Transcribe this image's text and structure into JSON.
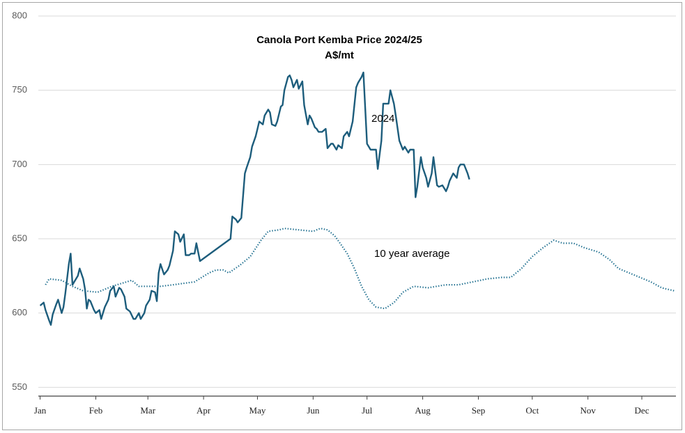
{
  "chart_data": {
    "type": "line",
    "title": "Canola Port Kemba Price 2024/25",
    "subtitle": "A$/mt",
    "annotations": [
      "2024",
      "10 year average"
    ],
    "xlim": [
      -1,
      354
    ],
    "xticks": [
      {
        "value": 0,
        "label": "Jan"
      },
      {
        "value": 31,
        "label": "Feb"
      },
      {
        "value": 60,
        "label": "Mar"
      },
      {
        "value": 91,
        "label": "Apr"
      },
      {
        "value": 121,
        "label": "May"
      },
      {
        "value": 152,
        "label": "Jun"
      },
      {
        "value": 182,
        "label": "Jul"
      },
      {
        "value": 213,
        "label": "Aug"
      },
      {
        "value": 244,
        "label": "Sep"
      },
      {
        "value": 274,
        "label": "Oct"
      },
      {
        "value": 305,
        "label": "Nov"
      },
      {
        "value": 335,
        "label": "Dec"
      }
    ],
    "ylim": [
      545,
      800
    ],
    "yticks": [
      550,
      600,
      650,
      700,
      750,
      800
    ],
    "grid": true,
    "series": [
      {
        "name": "2024",
        "color": "#1d5d7c",
        "style": "solid",
        "x": [
          0,
          2,
          3,
          5,
          6,
          7,
          9,
          10,
          12,
          13,
          14,
          16,
          17,
          18,
          19,
          21,
          22,
          24,
          25,
          26,
          27,
          28,
          30,
          31,
          33,
          34,
          36,
          38,
          39,
          41,
          42,
          44,
          45,
          47,
          48,
          50,
          52,
          53,
          55,
          56,
          58,
          59,
          61,
          62,
          64,
          65,
          66,
          67,
          69,
          71,
          72,
          74,
          75,
          77,
          78,
          80,
          81,
          83,
          84,
          86,
          87,
          89,
          106,
          107,
          109,
          110,
          112,
          114,
          115,
          117,
          118,
          120,
          121,
          122,
          124,
          125,
          127,
          128,
          129,
          131,
          132,
          134,
          135,
          136,
          138,
          139,
          140,
          141,
          143,
          144,
          146,
          147,
          149,
          150,
          151,
          153,
          154,
          155,
          157,
          159,
          160,
          162,
          163,
          165,
          166,
          168,
          169,
          171,
          172,
          174,
          176,
          177,
          179,
          180,
          181,
          182,
          184,
          185,
          187,
          188,
          190,
          191,
          193,
          194,
          195,
          197,
          198,
          200,
          202,
          203,
          205,
          206,
          208,
          209,
          210,
          212,
          213,
          215,
          216,
          218,
          219,
          221,
          222,
          224,
          226,
          227,
          228,
          230,
          232,
          233,
          234,
          236,
          238,
          239
        ],
        "values": [
          605,
          607,
          602,
          595,
          592,
          599,
          606,
          609,
          600,
          604,
          613,
          633,
          640,
          619,
          621,
          625,
          630,
          623,
          616,
          603,
          609,
          608,
          602,
          600,
          602,
          596,
          604,
          609,
          615,
          618,
          611,
          617,
          616,
          611,
          603,
          601,
          596,
          596,
          600,
          596,
          600,
          605,
          609,
          615,
          614,
          608,
          627,
          633,
          626,
          629,
          632,
          642,
          655,
          653,
          648,
          653,
          639,
          639,
          640,
          640,
          647,
          635,
          650,
          665,
          663,
          661,
          664,
          694,
          698,
          705,
          712,
          719,
          724,
          729,
          727,
          733,
          737,
          735,
          727,
          726,
          729,
          739,
          740,
          750,
          759,
          760,
          757,
          752,
          757,
          751,
          756,
          740,
          727,
          733,
          731,
          725,
          724,
          722,
          722,
          724,
          711,
          714,
          714,
          710,
          713,
          711,
          719,
          722,
          719,
          729,
          752,
          755,
          759,
          762,
          738,
          714,
          710,
          710,
          710,
          697,
          716,
          741,
          741,
          741,
          750,
          741,
          733,
          716,
          710,
          712,
          708,
          710,
          710,
          678,
          685,
          705,
          698,
          691,
          685,
          694,
          705,
          686,
          685,
          686,
          682,
          685,
          689,
          694,
          691,
          698,
          700,
          700,
          694,
          690
        ]
      },
      {
        "name": "10 year average",
        "color": "#1f6f8f",
        "style": "dotted",
        "x": [
          3,
          5,
          12,
          18,
          24,
          32,
          40,
          51,
          55,
          67,
          74,
          86,
          90,
          94,
          98,
          102,
          105,
          111,
          117,
          123,
          127,
          133,
          136,
          144,
          152,
          156,
          160,
          164,
          167,
          171,
          175,
          179,
          183,
          187,
          192,
          197,
          202,
          208,
          216,
          226,
          233,
          241,
          249,
          257,
          262,
          268,
          274,
          280,
          286,
          291,
          297,
          303,
          311,
          317,
          322,
          328,
          334,
          340,
          346,
          353
        ],
        "values": [
          619,
          623,
          622,
          618,
          615,
          614,
          618,
          622,
          618,
          618,
          619,
          621,
          624,
          627,
          629,
          629,
          627,
          632,
          638,
          649,
          655,
          656,
          657,
          656,
          655,
          657,
          656,
          652,
          647,
          640,
          630,
          618,
          609,
          604,
          603,
          607,
          614,
          618,
          617,
          619,
          619,
          621,
          623,
          624,
          624,
          630,
          638,
          644,
          649,
          647,
          647,
          644,
          641,
          636,
          630,
          627,
          624,
          621,
          617,
          615
        ]
      }
    ]
  }
}
